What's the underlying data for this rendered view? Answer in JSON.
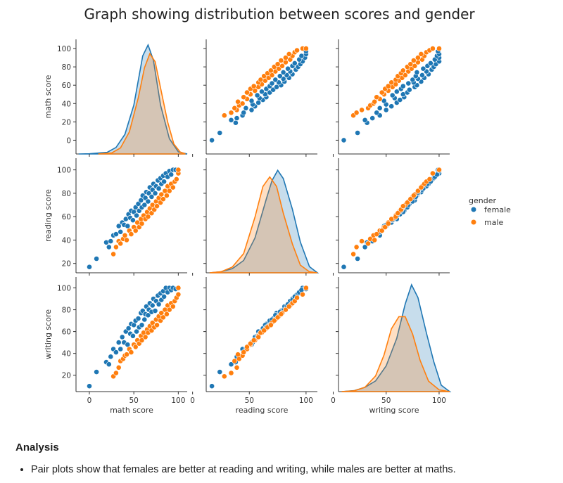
{
  "chart_data": {
    "type": "scatter",
    "title": "Graph showing distribution between scores and gender",
    "variables": [
      "math score",
      "reading score",
      "writing score"
    ],
    "hue": "gender",
    "legend": {
      "title": "gender",
      "placement": "right",
      "entries": [
        "female",
        "male"
      ]
    },
    "colors": {
      "female": "#1f77b4",
      "male": "#ff7f0e"
    },
    "axes": {
      "math score": {
        "lim": [
          -15,
          110
        ],
        "ticks": [
          0,
          50,
          100
        ],
        "row_ticks": [
          0,
          20,
          40,
          60,
          80,
          100
        ]
      },
      "reading score": {
        "lim": [
          12,
          110
        ],
        "ticks": [
          0,
          50,
          100
        ],
        "row_ticks": [
          20,
          40,
          60,
          80,
          100
        ]
      },
      "writing score": {
        "lim": [
          5,
          110
        ],
        "ticks": [
          0,
          50,
          100
        ],
        "row_ticks": [
          20,
          40,
          60,
          80,
          100
        ]
      }
    },
    "x_axis_labels": [
      "math score",
      "reading score",
      "writing score"
    ],
    "y_axis_labels": [
      "math score",
      "reading score",
      "writing score"
    ],
    "series": [
      {
        "name": "female",
        "points": [
          [
            0,
            17,
            10
          ],
          [
            8,
            24,
            23
          ],
          [
            19,
            38,
            32
          ],
          [
            22,
            34,
            30
          ],
          [
            24,
            39,
            37
          ],
          [
            27,
            44,
            44
          ],
          [
            30,
            45,
            41
          ],
          [
            33,
            52,
            50
          ],
          [
            35,
            47,
            44
          ],
          [
            37,
            55,
            55
          ],
          [
            39,
            53,
            50
          ],
          [
            41,
            58,
            60
          ],
          [
            43,
            52,
            48
          ],
          [
            44,
            62,
            63
          ],
          [
            46,
            59,
            58
          ],
          [
            47,
            65,
            67
          ],
          [
            49,
            57,
            56
          ],
          [
            50,
            64,
            66
          ],
          [
            52,
            68,
            70
          ],
          [
            53,
            61,
            60
          ],
          [
            55,
            71,
            72
          ],
          [
            56,
            65,
            64
          ],
          [
            58,
            74,
            77
          ],
          [
            59,
            68,
            66
          ],
          [
            60,
            78,
            79
          ],
          [
            62,
            70,
            71
          ],
          [
            63,
            76,
            76
          ],
          [
            64,
            81,
            83
          ],
          [
            66,
            73,
            75
          ],
          [
            67,
            80,
            80
          ],
          [
            68,
            85,
            86
          ],
          [
            70,
            77,
            78
          ],
          [
            71,
            83,
            84
          ],
          [
            72,
            88,
            90
          ],
          [
            74,
            80,
            79
          ],
          [
            75,
            86,
            88
          ],
          [
            77,
            91,
            93
          ],
          [
            78,
            84,
            85
          ],
          [
            80,
            93,
            95
          ],
          [
            81,
            88,
            89
          ],
          [
            83,
            95,
            97
          ],
          [
            84,
            90,
            92
          ],
          [
            86,
            97,
            100
          ],
          [
            88,
            94,
            96
          ],
          [
            90,
            99,
            100
          ],
          [
            92,
            96,
            98
          ],
          [
            94,
            100,
            100
          ],
          [
            97,
            100,
            99
          ],
          [
            100,
            100,
            100
          ]
        ],
        "kde": {
          "math score": {
            "x": [
              -12,
              0,
              20,
              30,
              40,
              50,
              60,
              66,
              72,
              80,
              90,
              100,
              110
            ],
            "y": [
              0.0,
              0.002,
              0.015,
              0.06,
              0.18,
              0.45,
              0.9,
              1.0,
              0.86,
              0.45,
              0.14,
              0.02,
              0.0
            ]
          },
          "reading score": {
            "x": [
              15,
              25,
              35,
              45,
              55,
              65,
              70,
              75,
              80,
              88,
              95,
              103,
              110
            ],
            "y": [
              0.0,
              0.01,
              0.04,
              0.12,
              0.34,
              0.72,
              0.9,
              1.0,
              0.92,
              0.62,
              0.3,
              0.06,
              0.0
            ]
          },
          "writing score": {
            "x": [
              8,
              20,
              30,
              40,
              50,
              60,
              68,
              74,
              80,
              88,
              95,
              102,
              110
            ],
            "y": [
              0.0,
              0.01,
              0.04,
              0.1,
              0.24,
              0.5,
              0.82,
              1.0,
              0.88,
              0.55,
              0.28,
              0.06,
              0.0
            ]
          }
        }
      },
      {
        "name": "male",
        "points": [
          [
            27,
            28,
            19
          ],
          [
            30,
            34,
            22
          ],
          [
            33,
            39,
            27
          ],
          [
            35,
            37,
            33
          ],
          [
            38,
            41,
            35
          ],
          [
            40,
            44,
            38
          ],
          [
            42,
            40,
            39
          ],
          [
            45,
            48,
            44
          ],
          [
            47,
            45,
            41
          ],
          [
            50,
            51,
            48
          ],
          [
            52,
            48,
            46
          ],
          [
            54,
            55,
            52
          ],
          [
            56,
            51,
            49
          ],
          [
            58,
            58,
            56
          ],
          [
            59,
            54,
            52
          ],
          [
            61,
            61,
            59
          ],
          [
            63,
            58,
            55
          ],
          [
            65,
            64,
            62
          ],
          [
            66,
            60,
            59
          ],
          [
            68,
            67,
            65
          ],
          [
            70,
            63,
            61
          ],
          [
            71,
            70,
            68
          ],
          [
            73,
            66,
            64
          ],
          [
            75,
            73,
            71
          ],
          [
            76,
            69,
            66
          ],
          [
            78,
            76,
            74
          ],
          [
            80,
            72,
            70
          ],
          [
            81,
            79,
            77
          ],
          [
            83,
            75,
            73
          ],
          [
            85,
            82,
            80
          ],
          [
            87,
            78,
            76
          ],
          [
            88,
            86,
            84
          ],
          [
            90,
            82,
            80
          ],
          [
            92,
            88,
            86
          ],
          [
            94,
            85,
            83
          ],
          [
            96,
            90,
            88
          ],
          [
            98,
            92,
            91
          ],
          [
            100,
            97,
            94
          ],
          [
            100,
            100,
            100
          ]
        ],
        "kde": {
          "math score": {
            "x": [
              10,
              25,
              35,
              45,
              55,
              62,
              68,
              74,
              80,
              88,
              95,
              102,
              108
            ],
            "y": [
              0.0,
              0.01,
              0.06,
              0.22,
              0.56,
              0.86,
              1.0,
              0.92,
              0.66,
              0.32,
              0.1,
              0.02,
              0.0
            ]
          },
          "reading score": {
            "x": [
              15,
              25,
              35,
              45,
              55,
              62,
              68,
              74,
              80,
              88,
              95,
              103,
              110
            ],
            "y": [
              0.0,
              0.01,
              0.06,
              0.2,
              0.58,
              0.9,
              1.0,
              0.9,
              0.62,
              0.3,
              0.08,
              0.01,
              0.0
            ]
          },
          "writing score": {
            "x": [
              8,
              20,
              30,
              40,
              48,
              55,
              62,
              68,
              75,
              82,
              90,
              100,
              110
            ],
            "y": [
              0.0,
              0.01,
              0.05,
              0.18,
              0.42,
              0.72,
              0.86,
              0.86,
              0.66,
              0.36,
              0.12,
              0.02,
              0.0
            ]
          }
        }
      }
    ],
    "kde_peak": {
      "math score": {
        "female": 1.0,
        "male": 0.92
      },
      "reading score": {
        "female": 0.94,
        "male": 0.88
      },
      "writing score": {
        "female": 0.98,
        "male": 0.8
      }
    }
  },
  "analysis": {
    "heading": "Analysis",
    "bullets": [
      "Pair plots show that females are better at reading and writing, while males are better at maths."
    ]
  }
}
